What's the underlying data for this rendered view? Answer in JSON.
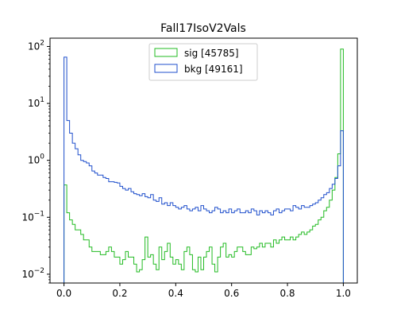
{
  "chart_data": {
    "type": "histogram",
    "title": "Fall17IsoV2Vals",
    "xlabel": "",
    "ylabel": "",
    "x_range": [
      -0.05,
      1.05
    ],
    "y_range": [
      0.007,
      140
    ],
    "y_scale": "log",
    "bin_edges_start": 0.0,
    "bin_width": 0.01,
    "x_ticks": [
      {
        "value": 0.0,
        "label": "0.0"
      },
      {
        "value": 0.2,
        "label": "0.2"
      },
      {
        "value": 0.4,
        "label": "0.4"
      },
      {
        "value": 0.6,
        "label": "0.6"
      },
      {
        "value": 0.8,
        "label": "0.8"
      },
      {
        "value": 1.0,
        "label": "1.0"
      }
    ],
    "y_ticks": [
      {
        "value": 0.01,
        "base": "10",
        "exp": "−2"
      },
      {
        "value": 0.1,
        "base": "10",
        "exp": "−1"
      },
      {
        "value": 1,
        "base": "10",
        "exp": "0"
      },
      {
        "value": 10,
        "base": "10",
        "exp": "1"
      },
      {
        "value": 100,
        "base": "10",
        "exp": "2"
      }
    ],
    "legend": {
      "placement": "top-center",
      "entries": [
        {
          "label": "sig [45785]",
          "series": 0
        },
        {
          "label": "bkg [49161]",
          "series": 1
        }
      ]
    },
    "series": [
      {
        "name": "sig [45785]",
        "color": "#22bb22",
        "values": [
          0.37,
          0.12,
          0.09,
          0.075,
          0.06,
          0.06,
          0.05,
          0.04,
          0.04,
          0.03,
          0.025,
          0.025,
          0.025,
          0.022,
          0.022,
          0.025,
          0.03,
          0.025,
          0.02,
          0.02,
          0.015,
          0.018,
          0.025,
          0.02,
          0.02,
          0.015,
          0.011,
          0.012,
          0.018,
          0.045,
          0.02,
          0.022,
          0.015,
          0.012,
          0.03,
          0.018,
          0.025,
          0.035,
          0.02,
          0.015,
          0.018,
          0.015,
          0.012,
          0.025,
          0.03,
          0.022,
          0.012,
          0.011,
          0.02,
          0.012,
          0.02,
          0.025,
          0.03,
          0.015,
          0.011,
          0.02,
          0.03,
          0.035,
          0.02,
          0.022,
          0.02,
          0.025,
          0.03,
          0.03,
          0.025,
          0.022,
          0.022,
          0.03,
          0.028,
          0.03,
          0.035,
          0.03,
          0.035,
          0.035,
          0.03,
          0.04,
          0.035,
          0.04,
          0.045,
          0.04,
          0.04,
          0.045,
          0.04,
          0.045,
          0.05,
          0.055,
          0.05,
          0.055,
          0.06,
          0.07,
          0.075,
          0.09,
          0.1,
          0.13,
          0.15,
          0.2,
          0.3,
          0.5,
          1.3,
          90.0
        ]
      },
      {
        "name": "bkg [49161]",
        "color": "#1f4fcc",
        "values": [
          65.0,
          5.0,
          3.0,
          2.0,
          1.6,
          1.25,
          1.0,
          0.95,
          0.9,
          0.8,
          0.65,
          0.6,
          0.55,
          0.55,
          0.5,
          0.48,
          0.42,
          0.42,
          0.41,
          0.4,
          0.35,
          0.32,
          0.3,
          0.32,
          0.28,
          0.26,
          0.25,
          0.24,
          0.26,
          0.23,
          0.22,
          0.25,
          0.2,
          0.19,
          0.22,
          0.17,
          0.18,
          0.16,
          0.18,
          0.16,
          0.15,
          0.14,
          0.15,
          0.16,
          0.14,
          0.13,
          0.14,
          0.15,
          0.13,
          0.16,
          0.14,
          0.13,
          0.12,
          0.13,
          0.15,
          0.14,
          0.12,
          0.13,
          0.12,
          0.14,
          0.12,
          0.13,
          0.14,
          0.12,
          0.12,
          0.13,
          0.12,
          0.14,
          0.13,
          0.11,
          0.13,
          0.12,
          0.13,
          0.12,
          0.11,
          0.13,
          0.14,
          0.12,
          0.13,
          0.14,
          0.14,
          0.13,
          0.16,
          0.15,
          0.14,
          0.16,
          0.15,
          0.15,
          0.16,
          0.17,
          0.18,
          0.2,
          0.22,
          0.25,
          0.27,
          0.32,
          0.38,
          0.48,
          0.8,
          3.3
        ]
      }
    ]
  }
}
